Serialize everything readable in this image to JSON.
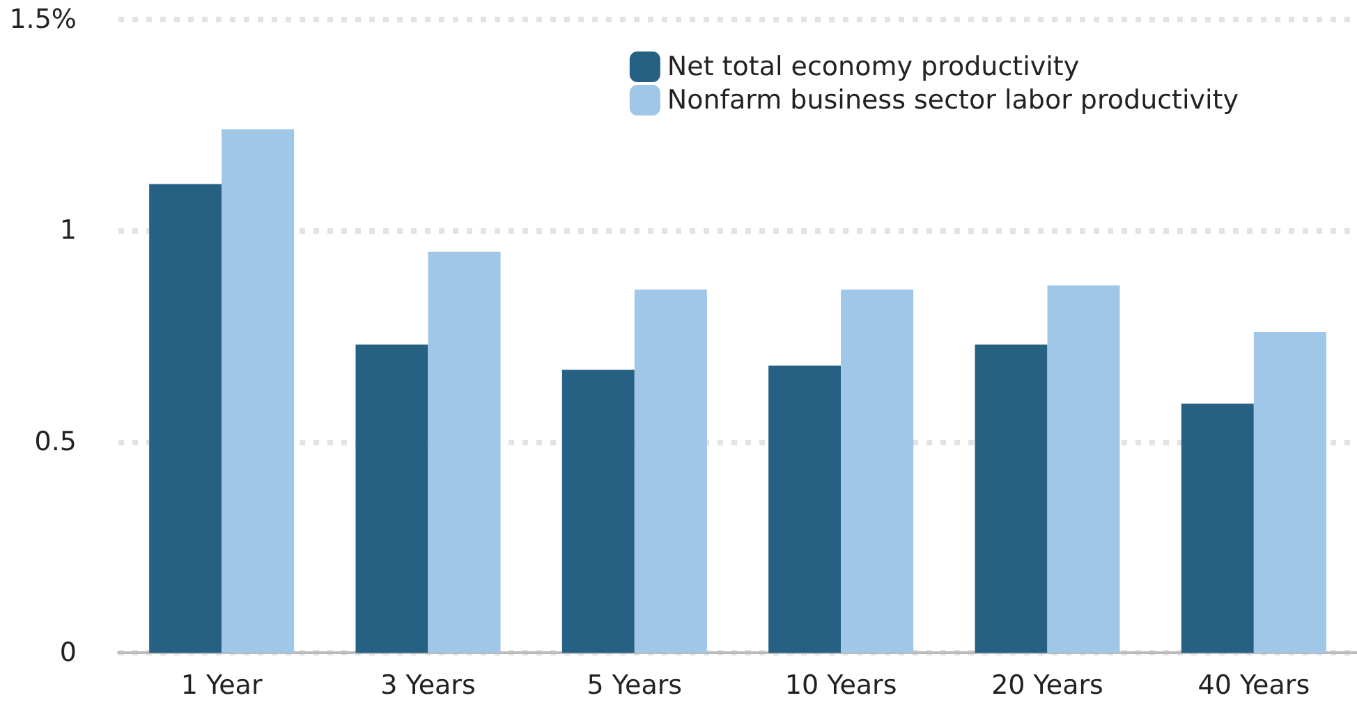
{
  "chart_data": {
    "type": "bar",
    "categories": [
      "1 Year",
      "3 Years",
      "5 Years",
      "10 Years",
      "20 Years",
      "40 Years"
    ],
    "series": [
      {
        "name": "Net total economy productivity",
        "color": "#266183",
        "values": [
          1.11,
          0.73,
          0.67,
          0.68,
          0.73,
          0.59
        ]
      },
      {
        "name": "Nonfarm business sector labor productivity",
        "color": "#a0c6e8",
        "values": [
          1.24,
          0.95,
          0.86,
          0.86,
          0.87,
          0.76
        ]
      }
    ],
    "ylim": [
      0,
      1.5
    ],
    "yticks": [
      0,
      0.5,
      1,
      {
        "value": 1.5,
        "label": "1.5%"
      }
    ],
    "grid": "y",
    "legend": "top right"
  }
}
